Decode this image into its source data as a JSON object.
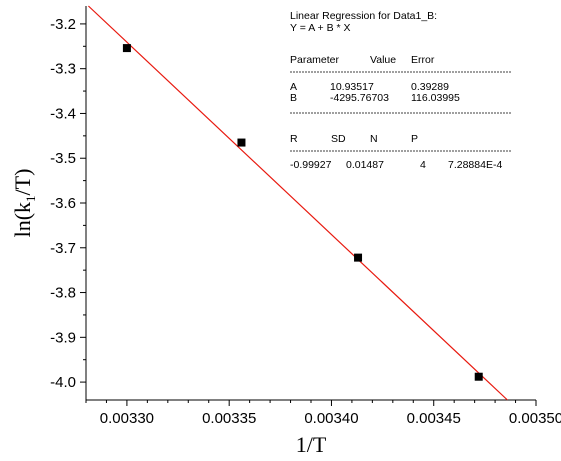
{
  "chart_data": {
    "type": "scatter",
    "xlabel": "1/T",
    "ylabel_main": "ln(k",
    "ylabel_sub": "1",
    "ylabel_end": "/T)",
    "xlim": [
      0.00328,
      0.0035
    ],
    "ylim": [
      -4.04,
      -3.16
    ],
    "xticks": [
      0.0033,
      0.00335,
      0.0034,
      0.00345,
      0.0035
    ],
    "xtick_labels": [
      "0.00330",
      "0.00335",
      "0.00340",
      "0.00345",
      "0.00350"
    ],
    "yticks": [
      -3.2,
      -3.3,
      -3.4,
      -3.5,
      -3.6,
      -3.7,
      -3.8,
      -3.9,
      -4.0
    ],
    "ytick_labels": [
      "-3.2",
      "-3.3",
      "-3.4",
      "-3.5",
      "-3.6",
      "-3.7",
      "-3.8",
      "-3.9",
      "-4.0"
    ],
    "points": [
      {
        "x": 0.0033,
        "y": -3.254
      },
      {
        "x": 0.003356,
        "y": -3.465
      },
      {
        "x": 0.003413,
        "y": -3.722
      },
      {
        "x": 0.003472,
        "y": -3.988
      }
    ],
    "fit_line": {
      "intercept": 10.93517,
      "slope": -4295.76703,
      "color": "#e8190f"
    },
    "marker_color": "#000000",
    "grid": false,
    "regression_box": {
      "title_line1": "Linear Regression for Data1_B:",
      "title_line2": "Y = A + B * X",
      "param_header": [
        "Parameter",
        "Value",
        "Error"
      ],
      "params": [
        {
          "name": "A",
          "value": "10.93517",
          "error": "0.39289"
        },
        {
          "name": "B",
          "value": "-4295.76703",
          "error": "116.03995"
        }
      ],
      "stats_header": [
        "R",
        "SD",
        "N",
        "P"
      ],
      "stats": [
        "-0.99927",
        "0.01487",
        "4",
        "7.28884E-4"
      ]
    }
  }
}
